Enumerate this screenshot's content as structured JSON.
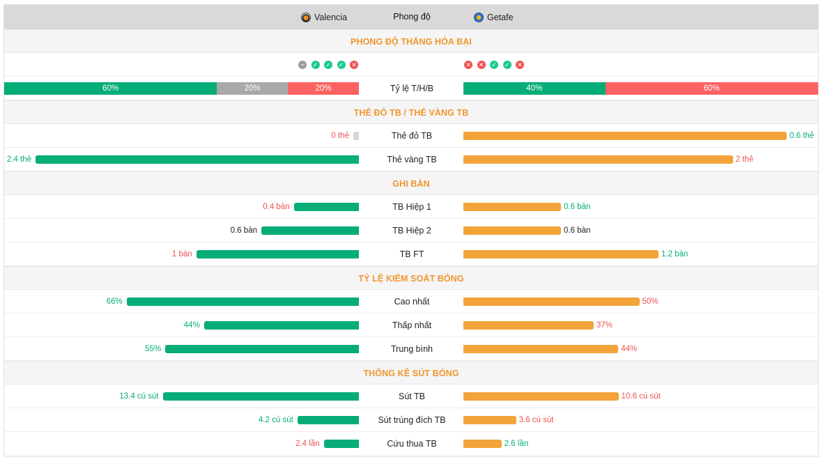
{
  "header": {
    "home_team": "Valencia",
    "away_team": "Getafe",
    "tab_label": "Phong độ",
    "home_crest_icon": "valencia-crest-icon",
    "away_crest_icon": "getafe-crest-icon"
  },
  "colors": {
    "home_bar": "#06ad78",
    "away_bar": "#f2a43a",
    "section_title": "#f0962e",
    "win": "#1dc98f",
    "loss": "#f25050",
    "draw": "#9a9a9a"
  },
  "form": {
    "title": "PHONG ĐỘ THẮNG HÒA BẠI",
    "home_results": [
      "D",
      "W",
      "W",
      "W",
      "L"
    ],
    "away_results": [
      "L",
      "L",
      "W",
      "W",
      "L"
    ],
    "ratio_label": "Tỷ lệ T/H/B",
    "home_ratio": [
      {
        "label": "60%",
        "value": 60,
        "kind": "win"
      },
      {
        "label": "20%",
        "value": 20,
        "kind": "draw"
      },
      {
        "label": "20%",
        "value": 20,
        "kind": "loss"
      }
    ],
    "away_ratio": [
      {
        "label": "40%",
        "value": 40,
        "kind": "win"
      },
      {
        "label": "60%",
        "value": 60,
        "kind": "loss"
      }
    ]
  },
  "cards": {
    "title": "THẺ ĐỎ TB / THẺ VÀNG TB",
    "rows": [
      {
        "label": "Thẻ đỏ TB",
        "home": "0 thẻ",
        "home_value": 0,
        "home_color": "red",
        "away": "0.6 thẻ",
        "away_value": 0.6,
        "away_color": "green"
      },
      {
        "label": "Thẻ vàng TB",
        "home": "2.4 thẻ",
        "home_value": 2.4,
        "home_color": "green",
        "away": "2 thẻ",
        "away_value": 2,
        "away_color": "red"
      }
    ]
  },
  "goals": {
    "title": "GHI BÀN",
    "rows": [
      {
        "label": "TB Hiệp 1",
        "home": "0.4 bàn",
        "home_value": 0.4,
        "home_color": "red",
        "away": "0.6 bàn",
        "away_value": 0.6,
        "away_color": "green"
      },
      {
        "label": "TB Hiệp 2",
        "home": "0.6 bàn",
        "home_value": 0.6,
        "home_color": "black",
        "away": "0.6 bàn",
        "away_value": 0.6,
        "away_color": "black"
      },
      {
        "label": "TB FT",
        "home": "1 bàn",
        "home_value": 1,
        "home_color": "red",
        "away": "1.2 bàn",
        "away_value": 1.2,
        "away_color": "green"
      }
    ]
  },
  "possession": {
    "title": "TỶ LỆ KIỂM SOÁT BÓNG",
    "rows": [
      {
        "label": "Cao nhất",
        "home": "66%",
        "home_value": 66,
        "home_color": "green",
        "away": "50%",
        "away_value": 50,
        "away_color": "red"
      },
      {
        "label": "Thấp nhất",
        "home": "44%",
        "home_value": 44,
        "home_color": "green",
        "away": "37%",
        "away_value": 37,
        "away_color": "red"
      },
      {
        "label": "Trung bình",
        "home": "55%",
        "home_value": 55,
        "home_color": "green",
        "away": "44%",
        "away_value": 44,
        "away_color": "red"
      }
    ]
  },
  "shots": {
    "title": "THỐNG KÊ SÚT BÓNG",
    "rows": [
      {
        "label": "Sút TB",
        "home": "13.4 cú sút",
        "home_value": 13.4,
        "home_color": "green",
        "away": "10.6 cú sút",
        "away_value": 10.6,
        "away_color": "red"
      },
      {
        "label": "Sút trúng đích TB",
        "home": "4.2 cú sút",
        "home_value": 4.2,
        "home_color": "green",
        "away": "3.6 cú sút",
        "away_value": 3.6,
        "away_color": "red"
      },
      {
        "label": "Cứu thua TB",
        "home": "2.4 lần",
        "home_value": 2.4,
        "home_color": "red",
        "away": "2.6 lần",
        "away_value": 2.6,
        "away_color": "green"
      }
    ]
  }
}
